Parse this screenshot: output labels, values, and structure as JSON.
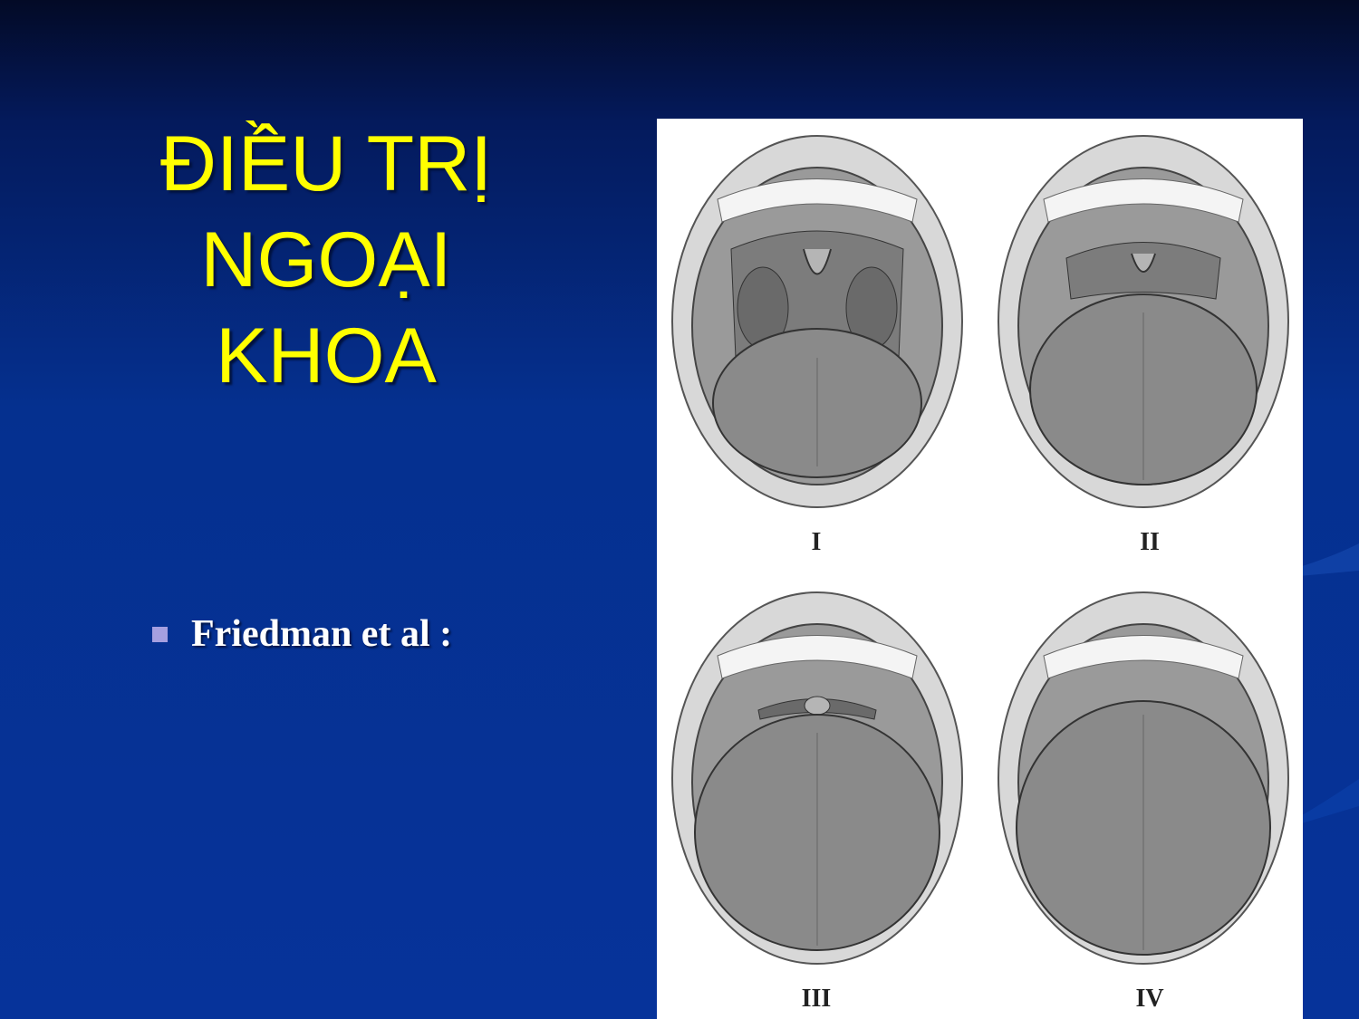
{
  "slide": {
    "title_lines": [
      "ĐIỀU TRỊ",
      "NGOẠI",
      "KHOA"
    ],
    "bullet": "Friedman et al :",
    "colors": {
      "title": "#ffff00",
      "bullet_marker": "#a59fe0",
      "background": "#05308f"
    }
  },
  "figure": {
    "grades": [
      {
        "label": "I",
        "palate": "tonsils-uvula-visible"
      },
      {
        "label": "II",
        "palate": "uvula-partly-visible"
      },
      {
        "label": "III",
        "palate": "soft-palate-only"
      },
      {
        "label": "IV",
        "palate": "hard-palate-only"
      }
    ]
  }
}
